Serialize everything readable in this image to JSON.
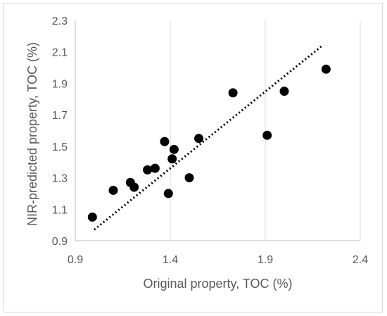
{
  "chart_data": {
    "type": "scatter",
    "title": "",
    "xlabel": "Original property, TOC (%)",
    "ylabel": "NIR-predicted property, TOC (%)",
    "xlim": [
      0.9,
      2.4
    ],
    "ylim": [
      0.9,
      2.3
    ],
    "x_ticks": [
      "0.9",
      "1.4",
      "1.9",
      "2.4"
    ],
    "y_ticks": [
      "0.9",
      "1.1",
      "1.3",
      "1.5",
      "1.7",
      "1.9",
      "2.1",
      "2.3"
    ],
    "grid": "vertical major gridlines",
    "legend": "none",
    "marker_color": "#000000",
    "points": [
      {
        "x": 0.99,
        "y": 1.05
      },
      {
        "x": 1.1,
        "y": 1.22
      },
      {
        "x": 1.19,
        "y": 1.27
      },
      {
        "x": 1.21,
        "y": 1.24
      },
      {
        "x": 1.28,
        "y": 1.35
      },
      {
        "x": 1.32,
        "y": 1.36
      },
      {
        "x": 1.37,
        "y": 1.53
      },
      {
        "x": 1.39,
        "y": 1.2
      },
      {
        "x": 1.41,
        "y": 1.42
      },
      {
        "x": 1.42,
        "y": 1.48
      },
      {
        "x": 1.5,
        "y": 1.3
      },
      {
        "x": 1.55,
        "y": 1.55
      },
      {
        "x": 1.73,
        "y": 1.84
      },
      {
        "x": 1.91,
        "y": 1.57
      },
      {
        "x": 2.0,
        "y": 1.85
      },
      {
        "x": 2.22,
        "y": 1.99
      }
    ],
    "trendline": {
      "style": "dotted",
      "x": [
        1.0,
        2.2
      ],
      "y": [
        0.97,
        2.14
      ]
    }
  }
}
